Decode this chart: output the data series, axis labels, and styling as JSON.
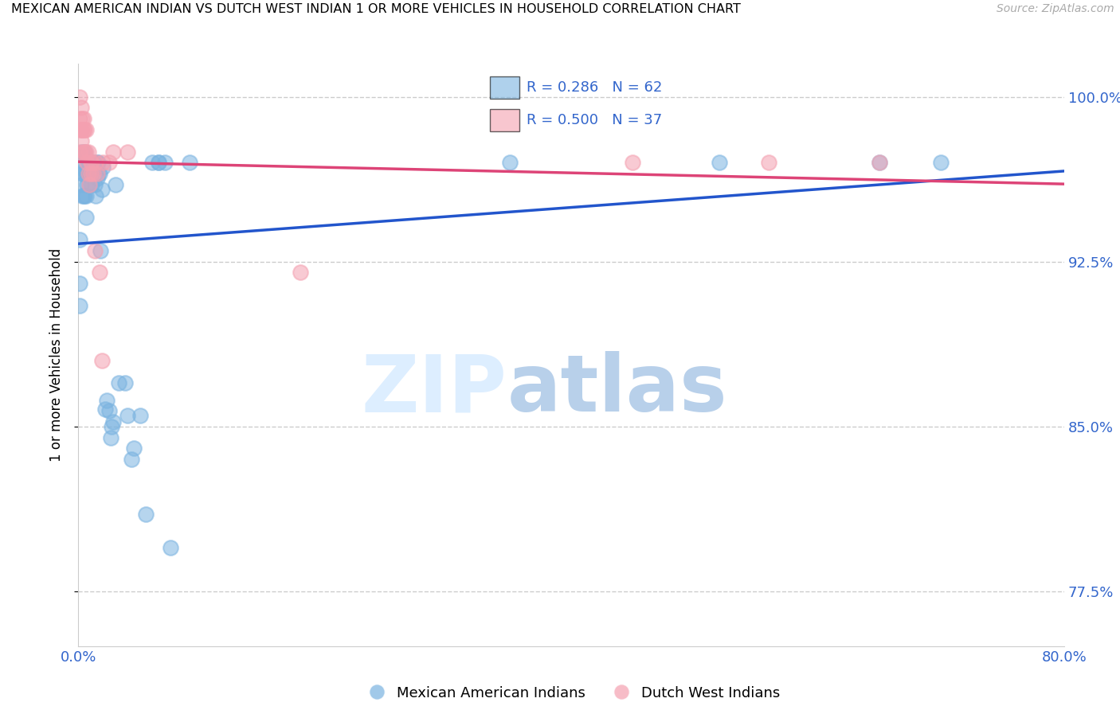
{
  "title": "MEXICAN AMERICAN INDIAN VS DUTCH WEST INDIAN 1 OR MORE VEHICLES IN HOUSEHOLD CORRELATION CHART",
  "source": "Source: ZipAtlas.com",
  "ylabel": "1 or more Vehicles in Household",
  "blue_color": "#7ab3e0",
  "pink_color": "#f4a0b0",
  "line_blue": "#2255cc",
  "line_pink": "#dd4477",
  "legend_R_blue": "R = 0.286",
  "legend_N_blue": "N = 62",
  "legend_R_pink": "R = 0.500",
  "legend_N_pink": "N = 37",
  "blue_scatter_x": [
    0.001,
    0.001,
    0.001,
    0.002,
    0.003,
    0.003,
    0.003,
    0.004,
    0.004,
    0.004,
    0.005,
    0.005,
    0.005,
    0.006,
    0.006,
    0.006,
    0.007,
    0.007,
    0.008,
    0.008,
    0.009,
    0.009,
    0.009,
    0.01,
    0.011,
    0.011,
    0.012,
    0.013,
    0.013,
    0.014,
    0.015,
    0.015,
    0.016,
    0.016,
    0.017,
    0.018,
    0.019,
    0.02,
    0.022,
    0.023,
    0.025,
    0.026,
    0.027,
    0.028,
    0.03,
    0.033,
    0.038,
    0.04,
    0.043,
    0.045,
    0.05,
    0.055,
    0.06,
    0.065,
    0.065,
    0.07,
    0.075,
    0.09,
    0.35,
    0.52,
    0.65,
    0.7
  ],
  "blue_scatter_y": [
    0.935,
    0.915,
    0.905,
    0.96,
    0.975,
    0.965,
    0.955,
    0.97,
    0.965,
    0.955,
    0.975,
    0.967,
    0.955,
    0.965,
    0.955,
    0.945,
    0.965,
    0.96,
    0.97,
    0.965,
    0.97,
    0.965,
    0.96,
    0.965,
    0.97,
    0.96,
    0.97,
    0.968,
    0.96,
    0.955,
    0.97,
    0.963,
    0.97,
    0.965,
    0.965,
    0.93,
    0.958,
    0.968,
    0.858,
    0.862,
    0.857,
    0.845,
    0.85,
    0.852,
    0.96,
    0.87,
    0.87,
    0.855,
    0.835,
    0.84,
    0.855,
    0.81,
    0.97,
    0.97,
    0.97,
    0.97,
    0.795,
    0.97,
    0.97,
    0.97,
    0.97,
    0.97
  ],
  "pink_scatter_x": [
    0.001,
    0.001,
    0.001,
    0.001,
    0.002,
    0.002,
    0.002,
    0.003,
    0.003,
    0.004,
    0.004,
    0.004,
    0.005,
    0.005,
    0.006,
    0.006,
    0.007,
    0.008,
    0.008,
    0.009,
    0.01,
    0.01,
    0.011,
    0.012,
    0.013,
    0.014,
    0.015,
    0.017,
    0.019,
    0.02,
    0.025,
    0.028,
    0.04,
    0.18,
    0.45,
    0.56,
    0.65
  ],
  "pink_scatter_y": [
    1.0,
    0.99,
    0.985,
    0.975,
    0.995,
    0.985,
    0.98,
    0.99,
    0.985,
    0.99,
    0.985,
    0.975,
    0.985,
    0.975,
    0.985,
    0.975,
    0.97,
    0.975,
    0.965,
    0.96,
    0.97,
    0.965,
    0.97,
    0.965,
    0.93,
    0.97,
    0.965,
    0.92,
    0.88,
    0.97,
    0.97,
    0.975,
    0.975,
    0.92,
    0.97,
    0.97,
    0.97
  ],
  "blue_line_x0": 0.0,
  "blue_line_x1": 0.8,
  "pink_line_x0": 0.0,
  "pink_line_x1": 0.3,
  "xlim": [
    0.0,
    0.8
  ],
  "ylim": [
    0.75,
    1.015
  ],
  "xtick_positions": [
    0.0,
    0.1,
    0.2,
    0.3,
    0.4,
    0.5,
    0.6,
    0.7,
    0.8
  ],
  "xtick_labels": [
    "0.0%",
    "",
    "",
    "",
    "",
    "",
    "",
    "",
    "80.0%"
  ],
  "ytick_positions": [
    0.775,
    0.85,
    0.925,
    1.0
  ],
  "ytick_labels": [
    "77.5%",
    "85.0%",
    "92.5%",
    "100.0%"
  ],
  "grid_color": "#cccccc"
}
